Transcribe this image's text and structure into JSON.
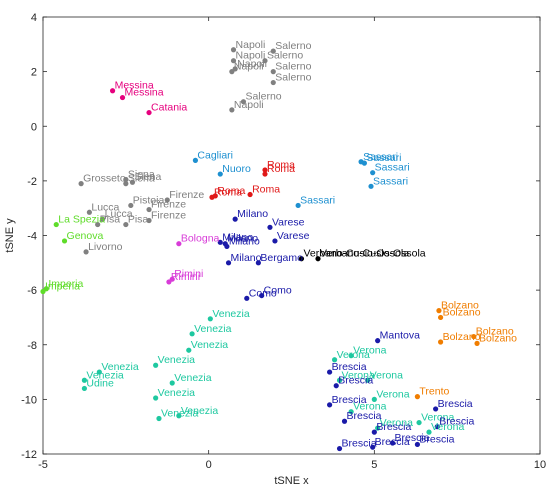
{
  "chart_data": {
    "type": "scatter",
    "xlabel": "tSNE x",
    "ylabel": "tSNE y",
    "xlim": [
      -5,
      10
    ],
    "ylim": [
      -12,
      4
    ],
    "xticks": [
      "-5",
      "0",
      "5",
      "10"
    ],
    "yticks": [
      "4",
      "2",
      "0",
      "-2",
      "-4",
      "-6",
      "-8",
      "-10",
      "-12"
    ],
    "xtick_values": [
      -5,
      0,
      5,
      10
    ],
    "ytick_values": [
      4,
      2,
      0,
      -2,
      -4,
      -6,
      -8,
      -10,
      -12
    ],
    "grid": false,
    "legend": "none",
    "points": [
      {
        "x": 0.75,
        "y": 2.8,
        "label": "Napoli",
        "color": "#808080"
      },
      {
        "x": 0.75,
        "y": 2.4,
        "label": "Napoli",
        "color": "#808080"
      },
      {
        "x": 0.7,
        "y": 2.0,
        "label": "Napoli",
        "color": "#808080"
      },
      {
        "x": 0.8,
        "y": 2.1,
        "label": "Napoli",
        "color": "#808080"
      },
      {
        "x": 0.7,
        "y": 0.6,
        "label": "Napoli",
        "color": "#808080"
      },
      {
        "x": 1.95,
        "y": 2.75,
        "label": "Salerno",
        "color": "#808080"
      },
      {
        "x": 1.7,
        "y": 2.4,
        "label": "Salerno",
        "color": "#808080"
      },
      {
        "x": 1.95,
        "y": 2.0,
        "label": "Salerno",
        "color": "#808080"
      },
      {
        "x": 1.95,
        "y": 1.6,
        "label": "Salerno",
        "color": "#808080"
      },
      {
        "x": 1.05,
        "y": 0.9,
        "label": "Salerno",
        "color": "#808080"
      },
      {
        "x": -2.9,
        "y": 1.3,
        "label": "Messina",
        "color": "#e6007e"
      },
      {
        "x": -2.6,
        "y": 1.05,
        "label": "Messina",
        "color": "#e6007e"
      },
      {
        "x": -1.8,
        "y": 0.5,
        "label": "Catania",
        "color": "#e6007e"
      },
      {
        "x": -3.85,
        "y": -2.1,
        "label": "Grosseto",
        "color": "#808080"
      },
      {
        "x": -2.5,
        "y": -1.95,
        "label": "Siena",
        "color": "#808080"
      },
      {
        "x": -2.5,
        "y": -2.1,
        "label": "Siena",
        "color": "#808080"
      },
      {
        "x": -2.3,
        "y": -2.05,
        "label": "Siena",
        "color": "#808080"
      },
      {
        "x": -3.6,
        "y": -3.15,
        "label": "Lucca",
        "color": "#808080"
      },
      {
        "x": -3.2,
        "y": -3.4,
        "label": "Lucca",
        "color": "#808080"
      },
      {
        "x": -2.35,
        "y": -2.9,
        "label": "Pistoia",
        "color": "#808080"
      },
      {
        "x": -3.35,
        "y": -3.6,
        "label": "Pisa",
        "color": "#808080"
      },
      {
        "x": -2.5,
        "y": -3.6,
        "label": "Pisa",
        "color": "#808080"
      },
      {
        "x": -1.25,
        "y": -2.7,
        "label": "Firenze",
        "color": "#808080"
      },
      {
        "x": -1.8,
        "y": -3.05,
        "label": "Firenze",
        "color": "#808080"
      },
      {
        "x": -1.8,
        "y": -3.45,
        "label": "Firenze",
        "color": "#808080"
      },
      {
        "x": -3.7,
        "y": -4.6,
        "label": "Livorno",
        "color": "#808080"
      },
      {
        "x": -4.6,
        "y": -3.6,
        "label": "La Spezia",
        "color": "#5fdc2a"
      },
      {
        "x": -4.35,
        "y": -4.2,
        "label": "Genova",
        "color": "#5fdc2a"
      },
      {
        "x": -4.9,
        "y": -5.95,
        "label": "Imperia",
        "color": "#5fdc2a"
      },
      {
        "x": -5.0,
        "y": -6.05,
        "label": "Imperia",
        "color": "#5fdc2a"
      },
      {
        "x": -0.4,
        "y": -1.25,
        "label": "Cagliari",
        "color": "#1e90d0"
      },
      {
        "x": 0.35,
        "y": -1.75,
        "label": "Nuoro",
        "color": "#1e90d0"
      },
      {
        "x": 1.7,
        "y": -1.6,
        "label": "Roma",
        "color": "#e01818"
      },
      {
        "x": 1.7,
        "y": -1.75,
        "label": "Roma",
        "color": "#e01818"
      },
      {
        "x": 0.1,
        "y": -2.6,
        "label": "Roma",
        "color": "#e01818"
      },
      {
        "x": 0.2,
        "y": -2.55,
        "label": "Roma",
        "color": "#e01818"
      },
      {
        "x": 1.25,
        "y": -2.5,
        "label": "Roma",
        "color": "#e01818"
      },
      {
        "x": 2.7,
        "y": -2.9,
        "label": "Sassari",
        "color": "#1e90d0"
      },
      {
        "x": 4.6,
        "y": -1.3,
        "label": "Sassari",
        "color": "#1e90d0"
      },
      {
        "x": 4.7,
        "y": -1.35,
        "label": "Sassari",
        "color": "#1e90d0"
      },
      {
        "x": 4.95,
        "y": -1.7,
        "label": "Sassari",
        "color": "#1e90d0"
      },
      {
        "x": 4.9,
        "y": -2.2,
        "label": "Sassari",
        "color": "#1e90d0"
      },
      {
        "x": -0.9,
        "y": -4.3,
        "label": "Bologna",
        "color": "#d83cd8"
      },
      {
        "x": -1.1,
        "y": -5.6,
        "label": "Rimini",
        "color": "#d83cd8"
      },
      {
        "x": -1.2,
        "y": -5.7,
        "label": "Rimini",
        "color": "#d83cd8"
      },
      {
        "x": 0.8,
        "y": -3.4,
        "label": "Milano",
        "color": "#1a1aa8"
      },
      {
        "x": 0.35,
        "y": -4.25,
        "label": "Milano",
        "color": "#1a1aa8"
      },
      {
        "x": 0.5,
        "y": -4.3,
        "label": "Milano",
        "color": "#1a1aa8"
      },
      {
        "x": 0.55,
        "y": -4.4,
        "label": "Milano",
        "color": "#1a1aa8"
      },
      {
        "x": 0.6,
        "y": -5.0,
        "label": "Milano",
        "color": "#1a1aa8"
      },
      {
        "x": 1.85,
        "y": -3.7,
        "label": "Varese",
        "color": "#1a1aa8"
      },
      {
        "x": 2.0,
        "y": -4.2,
        "label": "Varese",
        "color": "#1a1aa8"
      },
      {
        "x": 1.5,
        "y": -5.0,
        "label": "Bergamo",
        "color": "#1a1aa8"
      },
      {
        "x": 2.8,
        "y": -4.85,
        "label": "Verbano-Cusio-Ossola",
        "color": "#000000"
      },
      {
        "x": 3.3,
        "y": -4.85,
        "label": "Verbano-Cusio-Ossola",
        "color": "#000000"
      },
      {
        "x": 1.15,
        "y": -6.3,
        "label": "Como",
        "color": "#1a1aa8"
      },
      {
        "x": 1.6,
        "y": -6.2,
        "label": "Como",
        "color": "#1a1aa8"
      },
      {
        "x": 0.05,
        "y": -7.05,
        "label": "Venezia",
        "color": "#1ec8a0"
      },
      {
        "x": -0.5,
        "y": -7.6,
        "label": "Venezia",
        "color": "#1ec8a0"
      },
      {
        "x": -0.6,
        "y": -8.2,
        "label": "Venezia",
        "color": "#1ec8a0"
      },
      {
        "x": -1.6,
        "y": -8.75,
        "label": "Venezia",
        "color": "#1ec8a0"
      },
      {
        "x": -1.1,
        "y": -9.4,
        "label": "Venezia",
        "color": "#1ec8a0"
      },
      {
        "x": -3.3,
        "y": -9.0,
        "label": "Venezia",
        "color": "#1ec8a0"
      },
      {
        "x": -3.75,
        "y": -9.3,
        "label": "Venezia",
        "color": "#1ec8a0"
      },
      {
        "x": -1.6,
        "y": -9.95,
        "label": "Venezia",
        "color": "#1ec8a0"
      },
      {
        "x": -0.9,
        "y": -10.6,
        "label": "Venezia",
        "color": "#1ec8a0"
      },
      {
        "x": -1.5,
        "y": -10.7,
        "label": "Venezia",
        "color": "#1ec8a0"
      },
      {
        "x": -3.75,
        "y": -9.6,
        "label": "Udine",
        "color": "#1ec8a0"
      },
      {
        "x": 5.1,
        "y": -7.85,
        "label": "Mantova",
        "color": "#1a1aa8"
      },
      {
        "x": 3.8,
        "y": -8.55,
        "label": "Verona",
        "color": "#1ec8a0"
      },
      {
        "x": 4.3,
        "y": -8.4,
        "label": "Verona",
        "color": "#1ec8a0"
      },
      {
        "x": 3.95,
        "y": -9.3,
        "label": "Verona",
        "color": "#1ec8a0"
      },
      {
        "x": 4.8,
        "y": -9.3,
        "label": "Verona",
        "color": "#1ec8a0"
      },
      {
        "x": 5.0,
        "y": -10.0,
        "label": "Verona",
        "color": "#1ec8a0"
      },
      {
        "x": 4.3,
        "y": -10.45,
        "label": "Verona",
        "color": "#1ec8a0"
      },
      {
        "x": 5.1,
        "y": -11.05,
        "label": "Verona",
        "color": "#1ec8a0"
      },
      {
        "x": 6.35,
        "y": -10.85,
        "label": "Verona",
        "color": "#1ec8a0"
      },
      {
        "x": 6.65,
        "y": -11.2,
        "label": "Verona",
        "color": "#1ec8a0"
      },
      {
        "x": 3.65,
        "y": -9.0,
        "label": "Brescia",
        "color": "#1a1aa8"
      },
      {
        "x": 3.85,
        "y": -9.5,
        "label": "Brescia",
        "color": "#1a1aa8"
      },
      {
        "x": 3.65,
        "y": -10.2,
        "label": "Brescia",
        "color": "#1a1aa8"
      },
      {
        "x": 4.1,
        "y": -10.8,
        "label": "Brescia",
        "color": "#1a1aa8"
      },
      {
        "x": 5.0,
        "y": -11.2,
        "label": "Brescia",
        "color": "#1a1aa8"
      },
      {
        "x": 3.95,
        "y": -11.8,
        "label": "Brescia",
        "color": "#1a1aa8"
      },
      {
        "x": 4.95,
        "y": -11.75,
        "label": "Brescia",
        "color": "#1a1aa8"
      },
      {
        "x": 5.55,
        "y": -11.6,
        "label": "Brescia",
        "color": "#1a1aa8"
      },
      {
        "x": 6.3,
        "y": -11.65,
        "label": "Brescia",
        "color": "#1a1aa8"
      },
      {
        "x": 6.85,
        "y": -10.35,
        "label": "Brescia",
        "color": "#1a1aa8"
      },
      {
        "x": 6.9,
        "y": -11.0,
        "label": "Brescia",
        "color": "#1a1aa8"
      },
      {
        "x": 6.3,
        "y": -9.9,
        "label": "Trento",
        "color": "#f07d00"
      },
      {
        "x": 6.95,
        "y": -6.75,
        "label": "Bolzano",
        "color": "#f07d00"
      },
      {
        "x": 7.0,
        "y": -7.0,
        "label": "Bolzano",
        "color": "#f07d00"
      },
      {
        "x": 7.0,
        "y": -7.9,
        "label": "Bolzano",
        "color": "#f07d00"
      },
      {
        "x": 8.0,
        "y": -7.7,
        "label": "Bolzano",
        "color": "#f07d00"
      },
      {
        "x": 8.1,
        "y": -7.95,
        "label": "Bolzano",
        "color": "#f07d00"
      }
    ]
  }
}
